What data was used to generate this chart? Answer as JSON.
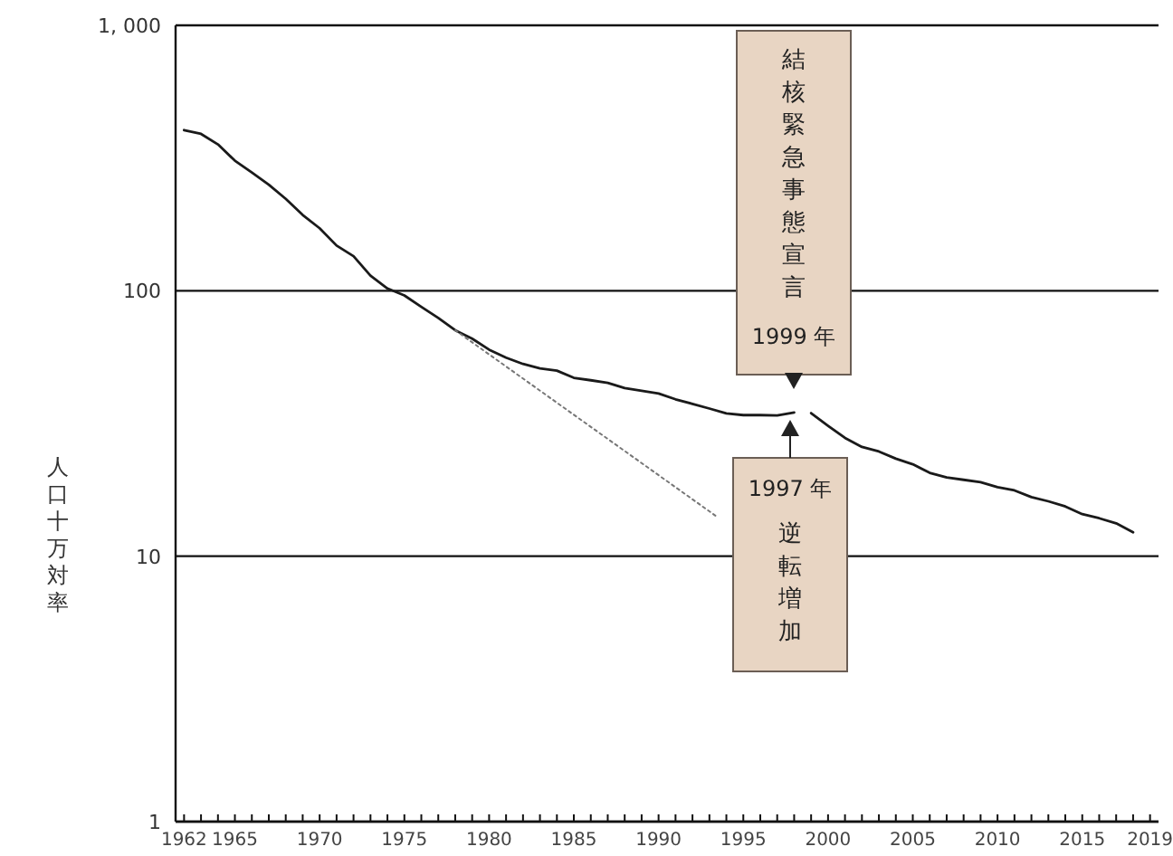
{
  "chart_data": {
    "type": "line",
    "ylabel": "人口十万対率",
    "log": true,
    "grid": "y",
    "marker": "none",
    "xlim": [
      1961.5,
      2019.5
    ],
    "xticks": [
      1962,
      {
        "value": 1963,
        "label": null
      },
      {
        "value": 1964,
        "label": null
      },
      1965,
      {
        "value": 1966,
        "label": null
      },
      {
        "value": 1967,
        "label": null
      },
      {
        "value": 1968,
        "label": null
      },
      {
        "value": 1969,
        "label": null
      },
      1970,
      {
        "value": 1971,
        "label": null
      },
      {
        "value": 1972,
        "label": null
      },
      {
        "value": 1973,
        "label": null
      },
      {
        "value": 1974,
        "label": null
      },
      1975,
      {
        "value": 1976,
        "label": null
      },
      {
        "value": 1977,
        "label": null
      },
      {
        "value": 1978,
        "label": null
      },
      {
        "value": 1979,
        "label": null
      },
      1980,
      {
        "value": 1981,
        "label": null
      },
      {
        "value": 1982,
        "label": null
      },
      {
        "value": 1983,
        "label": null
      },
      {
        "value": 1984,
        "label": null
      },
      1985,
      {
        "value": 1986,
        "label": null
      },
      {
        "value": 1987,
        "label": null
      },
      {
        "value": 1988,
        "label": null
      },
      {
        "value": 1989,
        "label": null
      },
      1990,
      {
        "value": 1991,
        "label": null
      },
      {
        "value": 1992,
        "label": null
      },
      {
        "value": 1993,
        "label": null
      },
      {
        "value": 1994,
        "label": null
      },
      1995,
      {
        "value": 1996,
        "label": null
      },
      {
        "value": 1997,
        "label": null
      },
      {
        "value": 1998,
        "label": null
      },
      {
        "value": 1999,
        "label": null
      },
      2000,
      {
        "value": 2001,
        "label": null
      },
      {
        "value": 2002,
        "label": null
      },
      {
        "value": 2003,
        "label": null
      },
      {
        "value": 2004,
        "label": null
      },
      2005,
      {
        "value": 2006,
        "label": null
      },
      {
        "value": 2007,
        "label": null
      },
      {
        "value": 2008,
        "label": null
      },
      {
        "value": 2009,
        "label": null
      },
      2010,
      {
        "value": 2011,
        "label": null
      },
      {
        "value": 2012,
        "label": null
      },
      {
        "value": 2013,
        "label": null
      },
      {
        "value": 2014,
        "label": null
      },
      2015,
      {
        "value": 2016,
        "label": null
      },
      {
        "value": 2017,
        "label": null
      },
      {
        "value": 2018,
        "label": null
      },
      2019
    ],
    "ylim": [
      1,
      1000
    ],
    "yticks": [
      1,
      10,
      100,
      {
        "value": 1000,
        "label": "1, 000"
      }
    ],
    "series": [
      {
        "color": "#1a1a1a",
        "line_style": "solid",
        "x": [
          1962,
          1963,
          1964,
          1965,
          1966,
          1967,
          1968,
          1969,
          1970,
          1971,
          1972,
          1973,
          1974,
          1975,
          1976,
          1977,
          1978,
          1979,
          1980,
          1981,
          1982,
          1983,
          1984,
          1985,
          1986,
          1987,
          1988,
          1989,
          1990,
          1991,
          1992,
          1993,
          1994,
          1995,
          1996,
          1997,
          1998
        ],
        "values": [
          403,
          390,
          356,
          309,
          279,
          251,
          222,
          193,
          172,
          148,
          135,
          114,
          102,
          96,
          87,
          79,
          71,
          66,
          60,
          56,
          53,
          51,
          50,
          47,
          46,
          45,
          43,
          42,
          41,
          39,
          37.5,
          36,
          34.5,
          34,
          34,
          33.9,
          34.8
        ]
      },
      {
        "color": "#1a1a1a",
        "line_style": "solid",
        "x": [
          1999,
          2000,
          2001,
          2002,
          2003,
          2004,
          2005,
          2006,
          2007,
          2008,
          2009,
          2010,
          2011,
          2012,
          2013,
          2014,
          2015,
          2016,
          2017,
          2018
        ],
        "values": [
          34.6,
          31,
          27.9,
          25.8,
          24.8,
          23.3,
          22.2,
          20.6,
          19.8,
          19.4,
          19,
          18.2,
          17.7,
          16.7,
          16.1,
          15.4,
          14.4,
          13.9,
          13.3,
          12.3
        ]
      },
      {
        "color": "#777777",
        "line_style": "dotted",
        "x": [
          1978,
          1993.5
        ],
        "values": [
          71,
          14
        ]
      }
    ],
    "annotations": [
      "結核緊急事態宣言",
      "1999 年",
      "1997 年",
      "逆転増加"
    ]
  }
}
